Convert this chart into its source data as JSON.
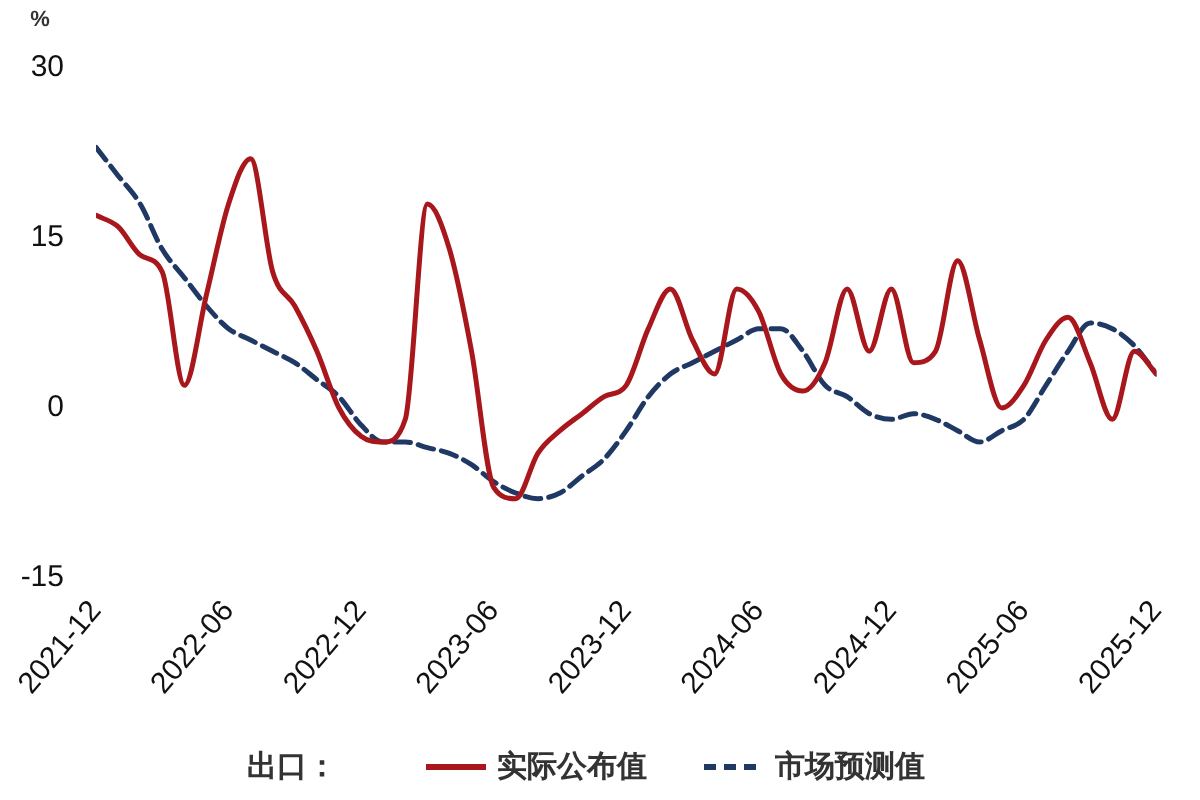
{
  "chart_data": {
    "type": "line",
    "ylabel": "%",
    "legend_title": "出口：",
    "x": [
      "2021-12",
      "2022-01",
      "2022-02",
      "2022-03",
      "2022-04",
      "2022-05",
      "2022-06",
      "2022-07",
      "2022-08",
      "2022-09",
      "2022-10",
      "2022-11",
      "2022-12",
      "2023-01",
      "2023-02",
      "2023-03",
      "2023-04",
      "2023-05",
      "2023-06",
      "2023-07",
      "2023-08",
      "2023-09",
      "2023-10",
      "2023-11",
      "2023-12",
      "2024-01",
      "2024-02",
      "2024-03",
      "2024-04",
      "2024-05",
      "2024-06",
      "2024-07",
      "2024-08",
      "2024-09",
      "2024-10",
      "2024-11",
      "2024-12",
      "2025-01",
      "2025-02",
      "2025-03",
      "2025-04",
      "2025-05",
      "2025-06",
      "2025-07",
      "2025-08",
      "2025-09",
      "2025-10",
      "2025-11",
      "2025-12"
    ],
    "series": [
      {
        "name": "实际公布值",
        "color": "#a8171c",
        "line_style": "solid",
        "values": [
          17,
          16,
          13.5,
          12,
          2,
          10,
          18,
          22,
          12,
          9,
          5,
          0,
          -2.5,
          -3,
          -1,
          18,
          14,
          5,
          -7,
          -8,
          -4,
          -2,
          -0.5,
          1,
          2,
          7,
          10.5,
          6,
          3,
          10.5,
          8.5,
          3,
          1.5,
          4,
          10.5,
          5,
          10.5,
          4,
          5,
          13,
          6,
          0,
          2,
          6,
          8,
          4,
          -1,
          5,
          3
        ]
      },
      {
        "name": "市场预测值",
        "color": "#1f3864",
        "line_style": "dashed",
        "values": [
          23,
          20.5,
          18,
          14,
          11.5,
          9,
          7,
          6,
          5,
          4,
          2.5,
          1,
          -1.5,
          -3,
          -3,
          -3.5,
          -4,
          -5,
          -6.5,
          -7.5,
          -8,
          -7.5,
          -6,
          -4.5,
          -2,
          1,
          3,
          4,
          5,
          6,
          7,
          7,
          5,
          2,
          1,
          -0.5,
          -1,
          -0.5,
          -1,
          -2,
          -3,
          -2,
          -1,
          2,
          5,
          7.5,
          7,
          5.5,
          3
        ]
      }
    ],
    "xlim": [
      "2021-12",
      "2025-12"
    ],
    "xticks": [
      "2021-12",
      "2022-06",
      "2022-12",
      "2023-06",
      "2023-12",
      "2024-06",
      "2024-12",
      "2025-06",
      "2025-12"
    ],
    "ylim": [
      -15,
      30
    ],
    "yticks": [
      -15,
      0,
      15,
      30
    ],
    "legend": "bottom",
    "marker": "none"
  }
}
